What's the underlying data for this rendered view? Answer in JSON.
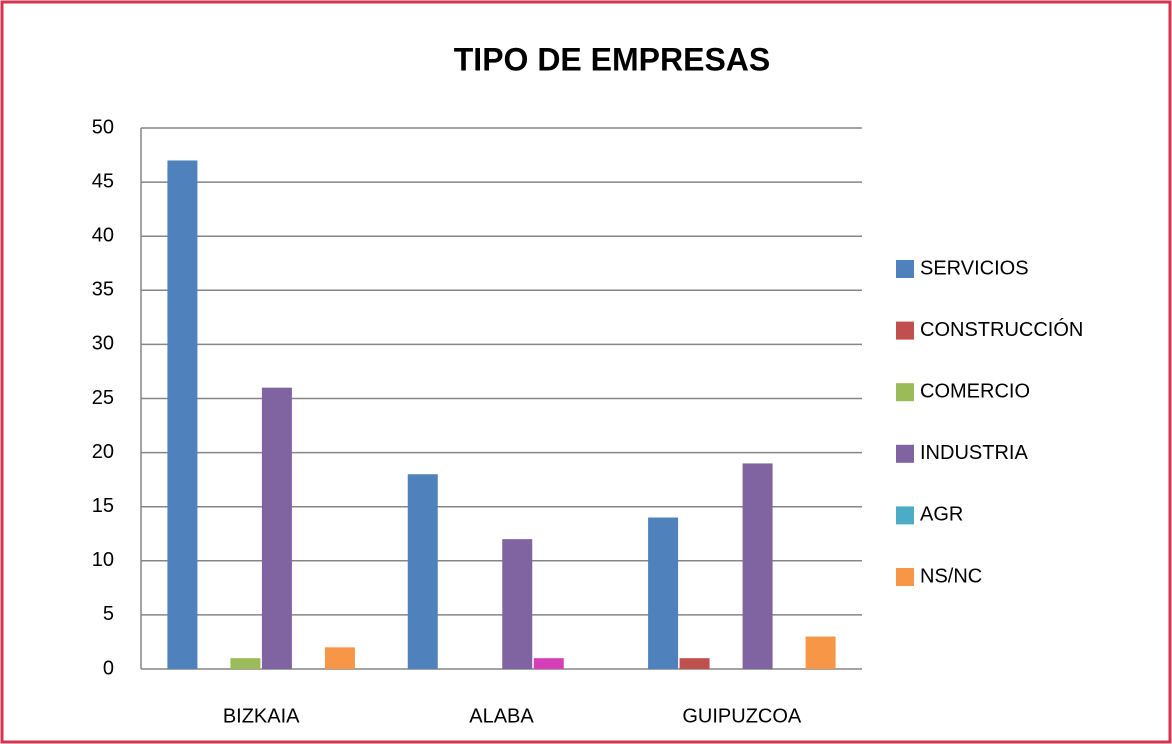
{
  "chart_data": {
    "type": "bar",
    "title": "TIPO DE EMPRESAS",
    "categories": [
      "BIZKAIA",
      "ALABA",
      "GUIPUZCOA"
    ],
    "series": [
      {
        "name": "SERVICIOS",
        "color": "#4f81bd",
        "values": [
          47,
          18,
          14
        ]
      },
      {
        "name": "CONSTRUCCIÓN",
        "color": "#c0504d",
        "values": [
          0,
          0,
          1
        ]
      },
      {
        "name": "COMERCIO",
        "color": "#9bbb59",
        "values": [
          1,
          0,
          0
        ]
      },
      {
        "name": "INDUSTRIA",
        "color": "#8064a2",
        "values": [
          26,
          12,
          19
        ]
      },
      {
        "name": "AGR",
        "color": "#4bacc6",
        "values": [
          0,
          1,
          0
        ],
        "point_colors": [
          null,
          "#d63fb7",
          null
        ]
      },
      {
        "name": "NS/NC",
        "color": "#f79646",
        "values": [
          2,
          0,
          3
        ]
      }
    ],
    "ylim": [
      0,
      50
    ],
    "yticks": [
      0,
      5,
      10,
      15,
      20,
      25,
      30,
      35,
      40,
      45,
      50
    ],
    "grid": true,
    "legend": "right"
  }
}
